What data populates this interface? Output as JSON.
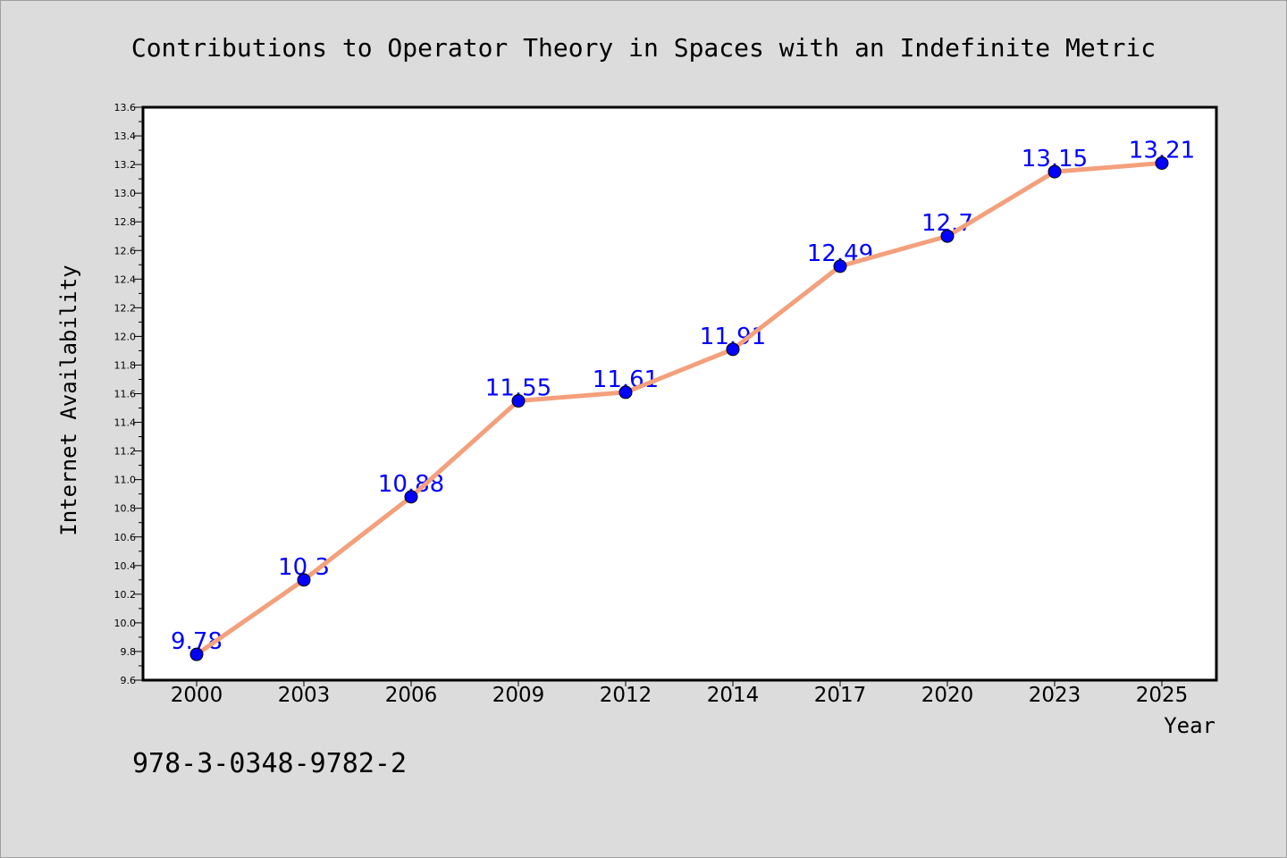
{
  "colors": {
    "background": "#dcdcdc",
    "plot_background": "#ffffff",
    "line": "#f4a07c",
    "marker": "#0000ff",
    "label": "#0000ff"
  },
  "isbn": "978-3-0348-9782-2",
  "chart_data": {
    "type": "line",
    "title": "Contributions to Operator Theory in Spaces with an Indefinite Metric",
    "xlabel": "Year",
    "ylabel": "Internet Availability",
    "categories": [
      "2000",
      "2003",
      "2006",
      "2009",
      "2012",
      "2014",
      "2017",
      "2020",
      "2023",
      "2025"
    ],
    "series": [
      {
        "values": [
          9.78,
          10.3,
          10.88,
          11.55,
          11.61,
          11.91,
          12.49,
          12.7,
          13.15,
          13.21
        ],
        "data_labels": [
          "9.78",
          "10.3",
          "10.88",
          "11.55",
          "11.61",
          "11.91",
          "12.49",
          "12.7",
          "13.15",
          "13.21"
        ]
      }
    ],
    "ylim": [
      9.6,
      13.6
    ],
    "yticks": [
      "9.6",
      "9.8",
      "10.0",
      "10.2",
      "10.4",
      "10.6",
      "10.8",
      "11.0",
      "11.2",
      "11.4",
      "11.6",
      "11.8",
      "12.0",
      "12.2",
      "12.4",
      "12.6",
      "12.8",
      "13.0",
      "13.2",
      "13.4",
      "13.6"
    ],
    "grid": false,
    "legend": "none"
  }
}
